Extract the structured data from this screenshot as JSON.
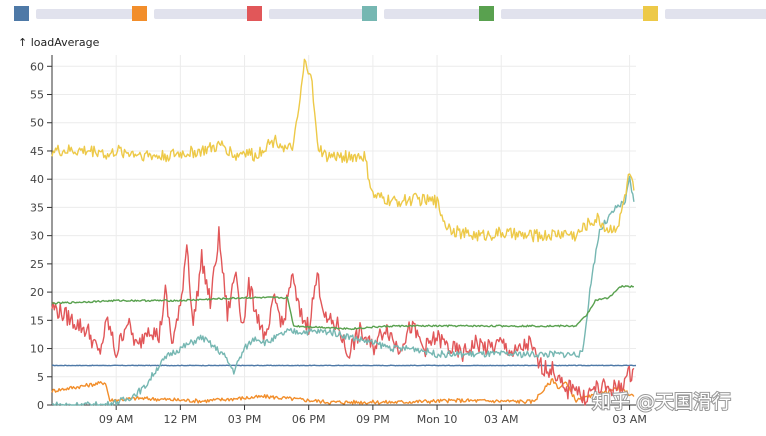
{
  "chart_data": {
    "type": "line",
    "ylabel": "↑ loadAverage",
    "ylim": [
      0,
      62
    ],
    "yticks": [
      0,
      5,
      10,
      15,
      20,
      25,
      30,
      35,
      40,
      45,
      50,
      55,
      60
    ],
    "x_range_hours": [
      6,
      33.3
    ],
    "xticks": [
      {
        "label": "09 AM",
        "hour": 9
      },
      {
        "label": "12 PM",
        "hour": 12
      },
      {
        "label": "03 PM",
        "hour": 15
      },
      {
        "label": "06 PM",
        "hour": 18
      },
      {
        "label": "09 PM",
        "hour": 21
      },
      {
        "label": "Mon 10",
        "hour": 24
      },
      {
        "label": "03 AM",
        "hour": 27
      },
      {
        "label": "03 AM",
        "hour": 33
      }
    ],
    "grid": true,
    "legend_position": "top",
    "series": [
      {
        "color": "#4e79a7",
        "points": [
          [
            6,
            7
          ],
          [
            10,
            7
          ],
          [
            15,
            7
          ],
          [
            20,
            7
          ],
          [
            25,
            7
          ],
          [
            30,
            7
          ],
          [
            33.3,
            7
          ]
        ]
      },
      {
        "color": "#f28e2b",
        "points": [
          [
            6,
            2.5
          ],
          [
            8.5,
            4
          ],
          [
            8.7,
            0.8
          ],
          [
            10,
            1.2
          ],
          [
            13,
            0.7
          ],
          [
            16,
            1.5
          ],
          [
            19,
            0.5
          ],
          [
            22,
            0.5
          ],
          [
            25,
            0.8
          ],
          [
            28.5,
            0.6
          ],
          [
            29.4,
            4.5
          ],
          [
            29.7,
            3
          ],
          [
            30,
            4
          ],
          [
            30.5,
            0.8
          ],
          [
            31.5,
            1.8
          ],
          [
            32.5,
            3
          ],
          [
            33.2,
            1.5
          ]
        ]
      },
      {
        "color": "#e15759",
        "points": [
          [
            6,
            17.5
          ],
          [
            7.7,
            13
          ],
          [
            8.2,
            9
          ],
          [
            8.6,
            15
          ],
          [
            9,
            9
          ],
          [
            9.5,
            15
          ],
          [
            10,
            10
          ],
          [
            10.5,
            14
          ],
          [
            11,
            12
          ],
          [
            11.3,
            20
          ],
          [
            11.6,
            11
          ],
          [
            12,
            17
          ],
          [
            12.3,
            29
          ],
          [
            12.6,
            14
          ],
          [
            13,
            26
          ],
          [
            13.4,
            18
          ],
          [
            13.8,
            30
          ],
          [
            14.2,
            16
          ],
          [
            14.6,
            24
          ],
          [
            14.9,
            14
          ],
          [
            15.2,
            21
          ],
          [
            15.6,
            16
          ],
          [
            16,
            11
          ],
          [
            16.4,
            19
          ],
          [
            16.8,
            14
          ],
          [
            17.2,
            23
          ],
          [
            17.6,
            16
          ],
          [
            18,
            14
          ],
          [
            18.4,
            23
          ],
          [
            18.8,
            15
          ],
          [
            19.4,
            14
          ],
          [
            19.8,
            9
          ],
          [
            20.4,
            13
          ],
          [
            21,
            10
          ],
          [
            21.6,
            14
          ],
          [
            22.2,
            10
          ],
          [
            22.8,
            14
          ],
          [
            23.4,
            10
          ],
          [
            24,
            12
          ],
          [
            24.6,
            10
          ],
          [
            25.2,
            9
          ],
          [
            25.8,
            11
          ],
          [
            26.4,
            10
          ],
          [
            27,
            11
          ],
          [
            27.6,
            9
          ],
          [
            28.3,
            11
          ],
          [
            28.8,
            7
          ],
          [
            29.5,
            6
          ],
          [
            30,
            2
          ],
          [
            30.4,
            4
          ],
          [
            30.8,
            1
          ],
          [
            31.4,
            3
          ],
          [
            32.5,
            3
          ],
          [
            33.2,
            6.5
          ]
        ]
      },
      {
        "color": "#76b7b2",
        "points": [
          [
            6,
            0
          ],
          [
            8.5,
            0
          ],
          [
            9.5,
            1
          ],
          [
            10.3,
            3
          ],
          [
            11,
            7
          ],
          [
            11.5,
            9
          ],
          [
            12,
            10
          ],
          [
            13,
            12
          ],
          [
            14,
            9
          ],
          [
            14.5,
            6
          ],
          [
            15,
            10
          ],
          [
            15.5,
            12
          ],
          [
            16,
            11
          ],
          [
            17,
            13
          ],
          [
            18,
            13
          ],
          [
            19,
            13
          ],
          [
            20,
            12
          ],
          [
            21,
            11
          ],
          [
            22,
            10
          ],
          [
            23,
            10
          ],
          [
            24,
            9
          ],
          [
            25,
            9
          ],
          [
            26,
            9
          ],
          [
            27,
            9
          ],
          [
            28,
            9
          ],
          [
            29,
            9
          ],
          [
            30,
            9
          ],
          [
            30.8,
            9
          ],
          [
            31.2,
            22
          ],
          [
            31.6,
            31
          ],
          [
            32,
            33
          ],
          [
            32.4,
            35
          ],
          [
            32.8,
            36
          ],
          [
            33,
            40
          ],
          [
            33.2,
            36
          ]
        ]
      },
      {
        "color": "#59a14f",
        "points": [
          [
            6,
            18
          ],
          [
            9,
            18.5
          ],
          [
            12,
            18.5
          ],
          [
            15,
            19
          ],
          [
            17,
            19
          ],
          [
            17.3,
            14
          ],
          [
            19,
            13.7
          ],
          [
            20,
            13.5
          ],
          [
            21,
            13.8
          ],
          [
            22,
            14
          ],
          [
            24,
            14
          ],
          [
            26,
            14
          ],
          [
            27,
            14
          ],
          [
            28,
            14
          ],
          [
            29,
            14
          ],
          [
            30.5,
            14
          ],
          [
            31,
            16
          ],
          [
            31.4,
            18.5
          ],
          [
            32,
            19
          ],
          [
            32.6,
            21
          ],
          [
            33.2,
            21
          ]
        ]
      },
      {
        "color": "#edc948",
        "points": [
          [
            6,
            45
          ],
          [
            8.3,
            45
          ],
          [
            8.6,
            44
          ],
          [
            9,
            45
          ],
          [
            10,
            44.5
          ],
          [
            11,
            44
          ],
          [
            12,
            44.5
          ],
          [
            13,
            45
          ],
          [
            14,
            46
          ],
          [
            14.6,
            44
          ],
          [
            15,
            45
          ],
          [
            15.5,
            44
          ],
          [
            16,
            46
          ],
          [
            16.5,
            47
          ],
          [
            17,
            45
          ],
          [
            17.3,
            46
          ],
          [
            17.6,
            54
          ],
          [
            17.8,
            60.5
          ],
          [
            18.1,
            59
          ],
          [
            18.4,
            46
          ],
          [
            18.8,
            44
          ],
          [
            20,
            44
          ],
          [
            20.6,
            44
          ],
          [
            21,
            37
          ],
          [
            22,
            36
          ],
          [
            23,
            36.5
          ],
          [
            24,
            36
          ],
          [
            24.4,
            32
          ],
          [
            25,
            30.5
          ],
          [
            26,
            30
          ],
          [
            27,
            30.5
          ],
          [
            28,
            30
          ],
          [
            29,
            30
          ],
          [
            30,
            30.5
          ],
          [
            30.5,
            30
          ],
          [
            31,
            32
          ],
          [
            31.5,
            33
          ],
          [
            32,
            31
          ],
          [
            32.5,
            32
          ],
          [
            33,
            41
          ],
          [
            33.2,
            38
          ]
        ]
      }
    ]
  },
  "watermark": {
    "text": "知乎 @天国滑行"
  }
}
